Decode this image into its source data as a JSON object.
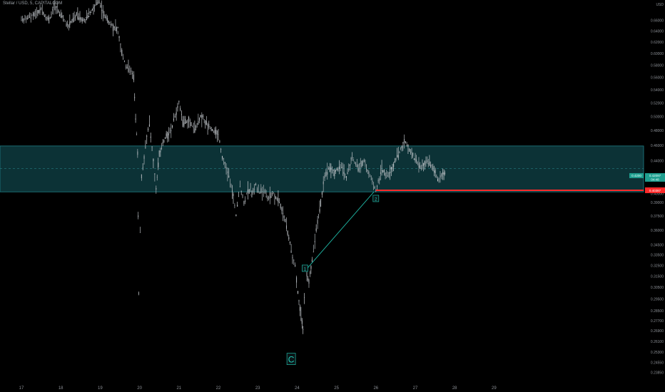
{
  "header": {
    "symbol": "Stellar / USD, 5, CAPITALCOM",
    "currency": "USD"
  },
  "chart_data": {
    "type": "candlestick",
    "symbol": "Stellar / USD",
    "interval": "5",
    "exchange": "CAPITALCOM",
    "x_ticks": [
      "17",
      "18",
      "19",
      "20",
      "21",
      "22",
      "23",
      "24",
      "25",
      "26",
      "27",
      "28",
      "29"
    ],
    "y_ticks": [
      "0.66000",
      "0.64000",
      "0.62000",
      "0.60000",
      "0.58000",
      "0.56000",
      "0.54000",
      "0.52000",
      "0.50000",
      "0.48000",
      "0.46000",
      "0.44000",
      "0.42000",
      "0.40000",
      "0.39000",
      "0.37500",
      "0.36000",
      "0.34500",
      "0.33500",
      "0.32500",
      "0.31500",
      "0.30500",
      "0.29500",
      "0.28500",
      "0.27700",
      "0.26900",
      "0.26100",
      "0.25300",
      "0.24550",
      "0.23850"
    ],
    "y_scale": "log",
    "y_range": [
      0.232,
      0.7
    ],
    "price_path": [
      [
        17.0,
        0.66
      ],
      [
        17.3,
        0.67
      ],
      [
        17.5,
        0.68
      ],
      [
        17.7,
        0.66
      ],
      [
        17.85,
        0.69
      ],
      [
        18.0,
        0.67
      ],
      [
        18.2,
        0.65
      ],
      [
        18.4,
        0.67
      ],
      [
        18.6,
        0.66
      ],
      [
        18.8,
        0.68
      ],
      [
        18.95,
        0.7
      ],
      [
        19.1,
        0.67
      ],
      [
        19.3,
        0.65
      ],
      [
        19.45,
        0.64
      ],
      [
        19.55,
        0.6
      ],
      [
        19.65,
        0.58
      ],
      [
        19.75,
        0.57
      ],
      [
        19.85,
        0.56
      ],
      [
        19.9,
        0.5
      ],
      [
        19.95,
        0.45
      ],
      [
        19.98,
        0.3
      ],
      [
        20.05,
        0.42
      ],
      [
        20.15,
        0.46
      ],
      [
        20.25,
        0.49
      ],
      [
        20.35,
        0.44
      ],
      [
        20.42,
        0.405
      ],
      [
        20.5,
        0.45
      ],
      [
        20.65,
        0.47
      ],
      [
        20.8,
        0.48
      ],
      [
        20.9,
        0.5
      ],
      [
        21.0,
        0.52
      ],
      [
        21.1,
        0.49
      ],
      [
        21.25,
        0.495
      ],
      [
        21.4,
        0.48
      ],
      [
        21.55,
        0.5
      ],
      [
        21.7,
        0.49
      ],
      [
        21.85,
        0.48
      ],
      [
        22.0,
        0.475
      ],
      [
        22.1,
        0.445
      ],
      [
        22.2,
        0.43
      ],
      [
        22.3,
        0.415
      ],
      [
        22.38,
        0.395
      ],
      [
        22.45,
        0.375
      ],
      [
        22.55,
        0.41
      ],
      [
        22.65,
        0.39
      ],
      [
        22.75,
        0.405
      ],
      [
        22.85,
        0.4
      ],
      [
        22.95,
        0.41
      ],
      [
        23.05,
        0.4
      ],
      [
        23.15,
        0.405
      ],
      [
        23.25,
        0.395
      ],
      [
        23.4,
        0.4
      ],
      [
        23.55,
        0.39
      ],
      [
        23.7,
        0.37
      ],
      [
        23.85,
        0.34
      ],
      [
        23.95,
        0.325
      ],
      [
        24.02,
        0.3
      ],
      [
        24.1,
        0.28
      ],
      [
        24.15,
        0.27
      ],
      [
        24.22,
        0.32
      ],
      [
        24.3,
        0.31
      ],
      [
        24.38,
        0.33
      ],
      [
        24.45,
        0.35
      ],
      [
        24.52,
        0.37
      ],
      [
        24.6,
        0.39
      ],
      [
        24.7,
        0.42
      ],
      [
        24.8,
        0.43
      ],
      [
        24.95,
        0.425
      ],
      [
        25.1,
        0.435
      ],
      [
        25.25,
        0.42
      ],
      [
        25.4,
        0.445
      ],
      [
        25.55,
        0.43
      ],
      [
        25.7,
        0.44
      ],
      [
        25.85,
        0.42
      ],
      [
        26.0,
        0.405
      ],
      [
        26.15,
        0.43
      ],
      [
        26.3,
        0.42
      ],
      [
        26.45,
        0.435
      ],
      [
        26.6,
        0.45
      ],
      [
        26.72,
        0.465
      ],
      [
        26.85,
        0.455
      ],
      [
        27.0,
        0.44
      ],
      [
        27.15,
        0.43
      ],
      [
        27.3,
        0.44
      ],
      [
        27.45,
        0.43
      ],
      [
        27.6,
        0.415
      ],
      [
        27.7,
        0.425
      ],
      [
        27.78,
        0.42
      ]
    ],
    "zone": {
      "upper": 0.459,
      "lower": 0.402,
      "mid": 0.43
    },
    "support_line": {
      "price": 0.40387,
      "from_x": 26.0,
      "label": "0.40387"
    },
    "current_price": {
      "price": 0.42,
      "label_top": "0.4200",
      "label_side": "0.42097",
      "label_bottom": "04:48"
    },
    "trendline": {
      "from": [
        24.25,
        0.322
      ],
      "to": [
        25.95,
        0.402
      ]
    },
    "wave_labels": [
      {
        "text": "1",
        "x": 24.2,
        "price": 0.322
      },
      {
        "text": "2",
        "x": 26.0,
        "price": 0.394
      }
    ],
    "annotations": [
      {
        "text": "C",
        "x": 23.85,
        "price": 0.248
      }
    ]
  }
}
